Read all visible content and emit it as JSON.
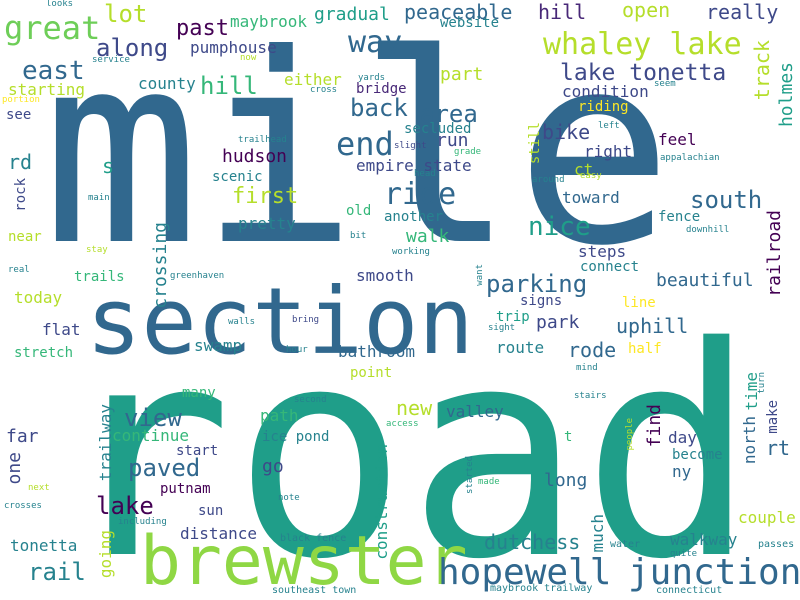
{
  "palette": {
    "yellow": "#fde725",
    "lime": "#b5de2b",
    "light_green": "#6ece58",
    "green": "#35b779",
    "teal": "#1f9e89",
    "cyan_blue": "#26828e",
    "blue": "#31688e",
    "indigo": "#3e4989",
    "purple": "#482878",
    "dark_purple": "#440154"
  },
  "words": [
    "mile",
    "road",
    "section",
    "brewster",
    "junction",
    "hopewell",
    "whaley lake",
    "way",
    "great",
    "lake tonetta",
    "ride",
    "end",
    "east",
    "along",
    "lot",
    "past",
    "maybrook",
    "gradual",
    "peaceable",
    "hill",
    "website",
    "open",
    "really",
    "pumphouse",
    "county",
    "hill",
    "part",
    "track",
    "holmes",
    "either",
    "bridge",
    "starting",
    "condition",
    "back",
    "area",
    "run",
    "riding",
    "see",
    "secluded",
    "bike",
    "right",
    "empire state",
    "rd",
    "s",
    "hudson",
    "ct",
    "south",
    "first",
    "scenic",
    "toward",
    "pretty",
    "nice",
    "railroad",
    "rock",
    "near",
    "old",
    "another",
    "walk",
    "steps",
    "connect",
    "parking",
    "smooth",
    "signs",
    "beautiful",
    "crossing",
    "today",
    "trails",
    "greenhaven",
    "flat",
    "trip",
    "park",
    "uphill",
    "stretch",
    "swamp",
    "bathroom",
    "rode",
    "route",
    "half",
    "line",
    "many",
    "point",
    "new",
    "valley",
    "view",
    "path",
    "ice pond",
    "find",
    "time",
    "north",
    "make",
    "rt",
    "far",
    "continue",
    "day",
    "go",
    "start",
    "become",
    "ny",
    "one",
    "trailway",
    "t",
    "long",
    "lake",
    "paved",
    "putnam",
    "sun",
    "distance",
    "construction",
    "much",
    "dutchess",
    "couple",
    "tonetta",
    "walkway",
    "rail",
    "going",
    "black fence",
    "water",
    "southeast town",
    "maybrook trailway",
    "connecticut",
    "passes",
    "quite",
    "feel",
    "appalachian",
    "fence",
    "still",
    "left",
    "seem",
    "yards",
    "cross",
    "now",
    "service",
    "looks",
    "portion",
    "trailhead",
    "slight",
    "main",
    "around",
    "easy",
    "grade",
    "head",
    "bit",
    "stay",
    "working",
    "downhill",
    "real",
    "want",
    "walls",
    "bring",
    "sight",
    "hour",
    "mind",
    "turn",
    "second",
    "access",
    "stairs",
    "people",
    "started",
    "made",
    "next",
    "crosses",
    "note",
    "including"
  ]
}
